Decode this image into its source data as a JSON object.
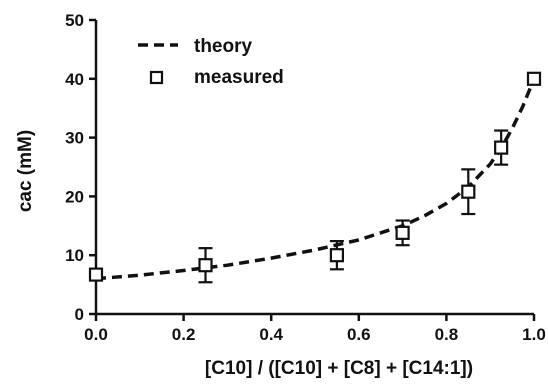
{
  "chart_data": {
    "type": "scatter",
    "xlabel": "[C10] / ([C10] + [C8] + [C14:1])",
    "ylabel": "cac (mM)",
    "xlim": [
      0,
      1.0
    ],
    "ylim": [
      0,
      50
    ],
    "x_ticks": [
      "0.0",
      "0.2",
      "0.4",
      "0.6",
      "0.8",
      "1.0"
    ],
    "y_ticks": [
      "0",
      "10",
      "20",
      "30",
      "40",
      "50"
    ],
    "legend": {
      "placement": "top-left",
      "entries": [
        "theory",
        "measured"
      ]
    },
    "series": [
      {
        "name": "theory",
        "style": "dashed-line",
        "x": [
          0.0,
          0.1,
          0.2,
          0.3,
          0.4,
          0.5,
          0.6,
          0.7,
          0.75,
          0.8,
          0.85,
          0.9,
          0.925,
          0.95,
          0.975,
          1.0
        ],
        "y": [
          6.0,
          6.6,
          7.4,
          8.3,
          9.5,
          10.9,
          12.6,
          15.0,
          16.7,
          18.8,
          21.6,
          25.5,
          28.2,
          31.5,
          35.4,
          40.0
        ]
      },
      {
        "name": "measured",
        "style": "open-square-with-error-bars",
        "x": [
          0.0,
          0.25,
          0.55,
          0.7,
          0.85,
          0.925,
          1.0
        ],
        "y": [
          6.7,
          8.3,
          10.0,
          13.8,
          20.8,
          28.3,
          40.0
        ],
        "err": [
          0.9,
          2.9,
          2.4,
          2.1,
          3.8,
          2.9,
          0.5
        ]
      }
    ]
  }
}
